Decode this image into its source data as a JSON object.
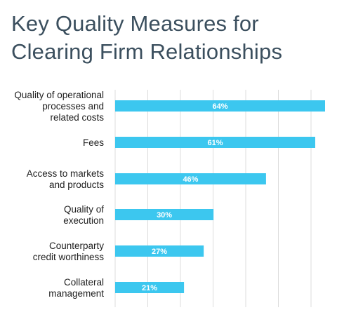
{
  "chart_data": {
    "type": "bar",
    "orientation": "horizontal",
    "title_lines": [
      "Key Quality Measures for",
      "Clearing Firm Relationships"
    ],
    "categories": [
      [
        "Quality of operational",
        "processes and",
        "related costs"
      ],
      [
        "Fees"
      ],
      [
        "Access to markets",
        "and products"
      ],
      [
        "Quality of",
        "execution"
      ],
      [
        "Counterparty",
        "credit worthiness"
      ],
      [
        "Collateral",
        "management"
      ]
    ],
    "values": [
      64,
      61,
      46,
      30,
      27,
      21
    ],
    "value_labels": [
      "64%",
      "61%",
      "46%",
      "30%",
      "27%",
      "21%"
    ],
    "xlim": [
      0,
      64
    ],
    "grid": true,
    "bar_color": "#3cc7ef",
    "grid_color": "#dcdcdc",
    "title_color": "#3b4f5e"
  }
}
